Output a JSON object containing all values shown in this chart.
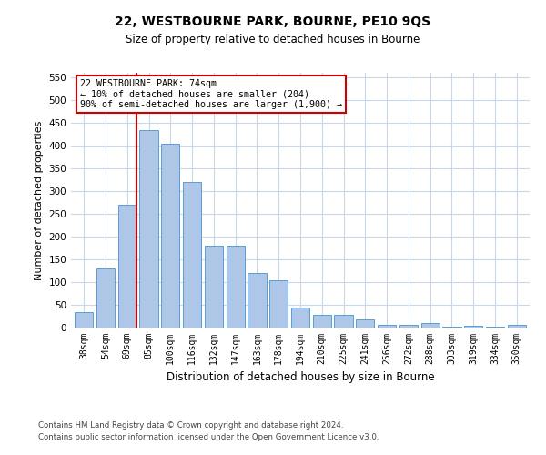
{
  "title1": "22, WESTBOURNE PARK, BOURNE, PE10 9QS",
  "title2": "Size of property relative to detached houses in Bourne",
  "xlabel": "Distribution of detached houses by size in Bourne",
  "ylabel": "Number of detached properties",
  "categories": [
    "38sqm",
    "54sqm",
    "69sqm",
    "85sqm",
    "100sqm",
    "116sqm",
    "132sqm",
    "147sqm",
    "163sqm",
    "178sqm",
    "194sqm",
    "210sqm",
    "225sqm",
    "241sqm",
    "256sqm",
    "272sqm",
    "288sqm",
    "303sqm",
    "319sqm",
    "334sqm",
    "350sqm"
  ],
  "values": [
    35,
    130,
    270,
    435,
    405,
    320,
    180,
    180,
    120,
    105,
    45,
    28,
    28,
    18,
    7,
    7,
    10,
    3,
    5,
    3,
    7
  ],
  "bar_color": "#aec6e8",
  "bar_edge_color": "#5a9fd4",
  "vline_x_index": 2,
  "vline_color": "#cc0000",
  "annotation_line1": "22 WESTBOURNE PARK: 74sqm",
  "annotation_line2": "← 10% of detached houses are smaller (204)",
  "annotation_line3": "90% of semi-detached houses are larger (1,900) →",
  "annotation_box_color": "#ffffff",
  "annotation_box_edge": "#cc0000",
  "ylim": [
    0,
    560
  ],
  "yticks": [
    0,
    50,
    100,
    150,
    200,
    250,
    300,
    350,
    400,
    450,
    500,
    550
  ],
  "footer1": "Contains HM Land Registry data © Crown copyright and database right 2024.",
  "footer2": "Contains public sector information licensed under the Open Government Licence v3.0.",
  "bg_color": "#ffffff",
  "grid_color": "#c8d8e8"
}
